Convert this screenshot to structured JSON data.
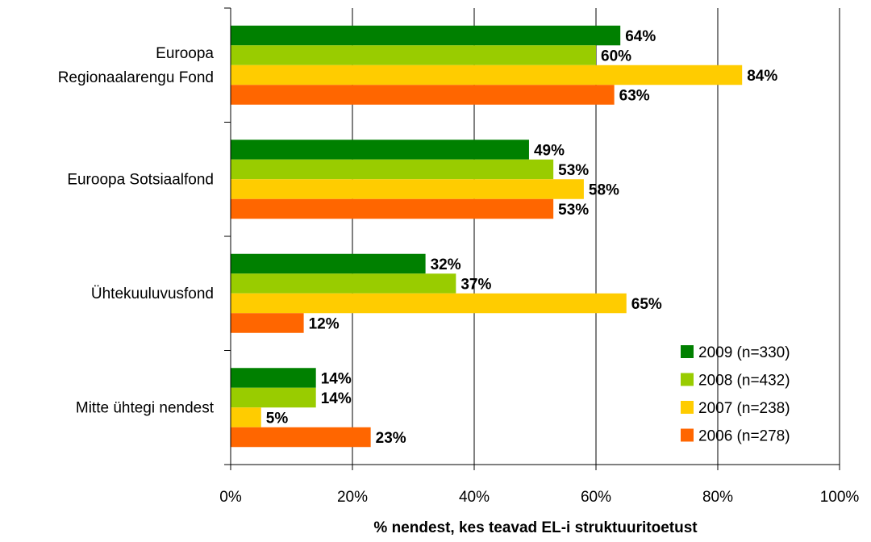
{
  "chart_data": {
    "type": "bar",
    "orientation": "horizontal",
    "categories": [
      "Euroopa\nRegionaalarengu Fond",
      "Euroopa Sotsiaalfond",
      "Ühtekuuluvusfond",
      "Mitte ühtegi nendest"
    ],
    "series": [
      {
        "name": "2009 (n=330)",
        "color": "#008000",
        "values": [
          64,
          49,
          32,
          14
        ],
        "labels": [
          "64%",
          "49%",
          "32%",
          "14%"
        ]
      },
      {
        "name": "2008 (n=432)",
        "color": "#99cc00",
        "values": [
          60,
          53,
          37,
          14
        ],
        "labels": [
          "60%",
          "53%",
          "37%",
          "14%"
        ]
      },
      {
        "name": "2007 (n=238)",
        "color": "#ffcc00",
        "values": [
          84,
          58,
          65,
          5
        ],
        "labels": [
          "84%",
          "58%",
          "65%",
          "5%"
        ]
      },
      {
        "name": "2006 (n=278)",
        "color": "#ff6600",
        "values": [
          63,
          53,
          12,
          23
        ],
        "labels": [
          "63%",
          "53%",
          "12%",
          "23%"
        ]
      }
    ],
    "xlabel": "% nendest, kes teavad EL-i struktuuritoetust",
    "xlim": [
      0,
      100
    ],
    "xticks": [
      0,
      20,
      40,
      60,
      80,
      100
    ],
    "xtick_labels": [
      "0%",
      "20%",
      "40%",
      "60%",
      "80%",
      "100%"
    ],
    "grid": "vertical",
    "legend_position": "bottom-right"
  }
}
